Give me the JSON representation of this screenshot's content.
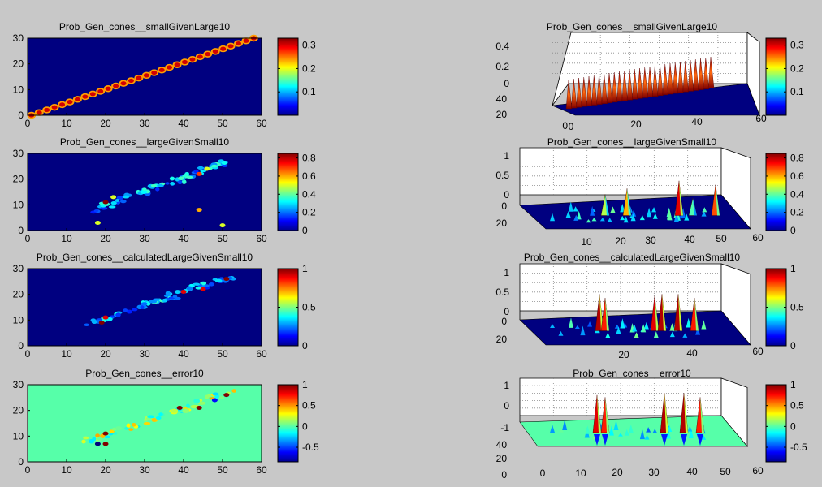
{
  "figure": {
    "background": "#c8c8c8",
    "colormap": "jet"
  },
  "chart_data": [
    {
      "id": "p1",
      "type": "heatmap",
      "title": "Prob_Gen_cones__smallGivenLarge10",
      "xlim": [
        0,
        60
      ],
      "ylim": [
        0,
        30
      ],
      "xticks": [
        0,
        10,
        20,
        30,
        40,
        50,
        60
      ],
      "yticks": [
        0,
        10,
        20,
        30
      ],
      "colorbar": {
        "range": [
          0,
          0.33
        ],
        "ticks": [
          0.1,
          0.2,
          0.3
        ]
      },
      "background_value": 0,
      "pattern": "diagonal_band",
      "band": {
        "x0": 1,
        "y0": 0,
        "x1": 58,
        "y1": 30,
        "peak": 0.33,
        "width": 1.0,
        "periodic_steps": 29
      }
    },
    {
      "id": "p2",
      "type": "surface3d",
      "title": "Prob_Gen_cones__smallGivenLarge10",
      "xlim": [
        0,
        60
      ],
      "ylim": [
        0,
        50
      ],
      "zlim": [
        0,
        0.4
      ],
      "xticks": [
        0,
        20,
        40,
        60
      ],
      "yticks": [
        0,
        20,
        40
      ],
      "zticks": [
        0,
        0.2,
        0.4
      ],
      "colorbar": {
        "range": [
          0,
          0.33
        ],
        "ticks": [
          0.1,
          0.2,
          0.3
        ]
      }
    },
    {
      "id": "p3",
      "type": "heatmap",
      "title": "Prob_Gen_cones__largeGivenSmall10",
      "xlim": [
        0,
        60
      ],
      "ylim": [
        0,
        30
      ],
      "xticks": [
        0,
        10,
        20,
        30,
        40,
        50,
        60
      ],
      "yticks": [
        0,
        10,
        20,
        30
      ],
      "colorbar": {
        "range": [
          0,
          0.85
        ],
        "ticks": [
          0,
          0.2,
          0.4,
          0.6,
          0.8
        ]
      },
      "background_value": 0,
      "pattern": "diagonal_scatter",
      "band": {
        "x0": 17,
        "y0": 8,
        "x1": 52,
        "y1": 27
      },
      "hotspots": [
        [
          20,
          11,
          0.85
        ],
        [
          18,
          3,
          0.5
        ],
        [
          44,
          8,
          0.6
        ],
        [
          44,
          22,
          0.7
        ],
        [
          50,
          2,
          0.5
        ],
        [
          22,
          13,
          0.5
        ],
        [
          46,
          24,
          0.5
        ]
      ]
    },
    {
      "id": "p4",
      "type": "surface3d",
      "title": "Prob_Gen_cones__largeGivenSmall10",
      "xlim": [
        0,
        60
      ],
      "ylim": [
        0,
        30
      ],
      "zlim": [
        0,
        1
      ],
      "xticks": [
        10,
        20,
        30,
        40,
        50,
        60
      ],
      "yticks": [
        0,
        20
      ],
      "zticks": [
        0,
        0.5,
        1
      ],
      "colorbar": {
        "range": [
          0,
          0.85
        ],
        "ticks": [
          0,
          0.2,
          0.4,
          0.6,
          0.8
        ]
      }
    },
    {
      "id": "p5",
      "type": "heatmap",
      "title": "Prob_Gen_cones__calculatedLargeGivenSmall10",
      "xlim": [
        0,
        60
      ],
      "ylim": [
        0,
        30
      ],
      "xticks": [
        0,
        10,
        20,
        30,
        40,
        50,
        60
      ],
      "yticks": [
        0,
        10,
        20,
        30
      ],
      "colorbar": {
        "range": [
          0,
          1
        ],
        "ticks": [
          0,
          0.5,
          1
        ]
      },
      "background_value": 0,
      "pattern": "diagonal_scatter",
      "band": {
        "x0": 15,
        "y0": 8,
        "x1": 52,
        "y1": 27
      },
      "hotspots": [
        [
          19,
          9,
          1.0
        ],
        [
          20,
          11,
          0.9
        ],
        [
          40,
          21,
          0.9
        ],
        [
          45,
          22,
          0.9
        ],
        [
          51,
          26,
          1.0
        ]
      ]
    },
    {
      "id": "p6",
      "type": "surface3d",
      "title": "Prob_Gen_cones__calculatedLargeGivenSmall10",
      "xlim": [
        0,
        60
      ],
      "ylim": [
        0,
        30
      ],
      "zlim": [
        0,
        1
      ],
      "xticks": [
        20,
        40,
        60
      ],
      "yticks": [
        0,
        20
      ],
      "zticks": [
        0,
        0.5,
        1
      ],
      "colorbar": {
        "range": [
          0,
          1
        ],
        "ticks": [
          0,
          0.5,
          1
        ]
      }
    },
    {
      "id": "p7",
      "type": "heatmap",
      "title": "Prob_Gen_cones__error10",
      "xlim": [
        0,
        60
      ],
      "ylim": [
        0,
        30
      ],
      "xticks": [
        0,
        10,
        20,
        30,
        40,
        50,
        60
      ],
      "yticks": [
        0,
        10,
        20,
        30
      ],
      "colorbar": {
        "range": [
          -0.85,
          1
        ],
        "ticks": [
          -0.5,
          0,
          0.5,
          1
        ]
      },
      "background_value": 0,
      "pattern": "diagonal_scatter_signed",
      "band": {
        "x0": 15,
        "y0": 8,
        "x1": 52,
        "y1": 27
      },
      "hotspots": [
        [
          18,
          7,
          -0.85
        ],
        [
          20,
          11,
          1.0
        ],
        [
          20,
          7,
          1.0
        ],
        [
          39,
          21,
          1.0
        ],
        [
          44,
          21,
          1.0
        ],
        [
          51,
          26,
          1.0
        ],
        [
          48,
          24,
          -0.6
        ]
      ]
    },
    {
      "id": "p8",
      "type": "surface3d",
      "title": "Prob_Gen_cones__error10",
      "xlim": [
        0,
        60
      ],
      "ylim": [
        0,
        50
      ],
      "zlim": [
        -1,
        1
      ],
      "xticks": [
        0,
        10,
        20,
        30,
        40,
        50,
        60
      ],
      "yticks": [
        0,
        20,
        40
      ],
      "zticks": [
        -1,
        0,
        1
      ],
      "colorbar": {
        "range": [
          -0.85,
          1
        ],
        "ticks": [
          -0.5,
          0,
          0.5,
          1
        ]
      }
    }
  ]
}
